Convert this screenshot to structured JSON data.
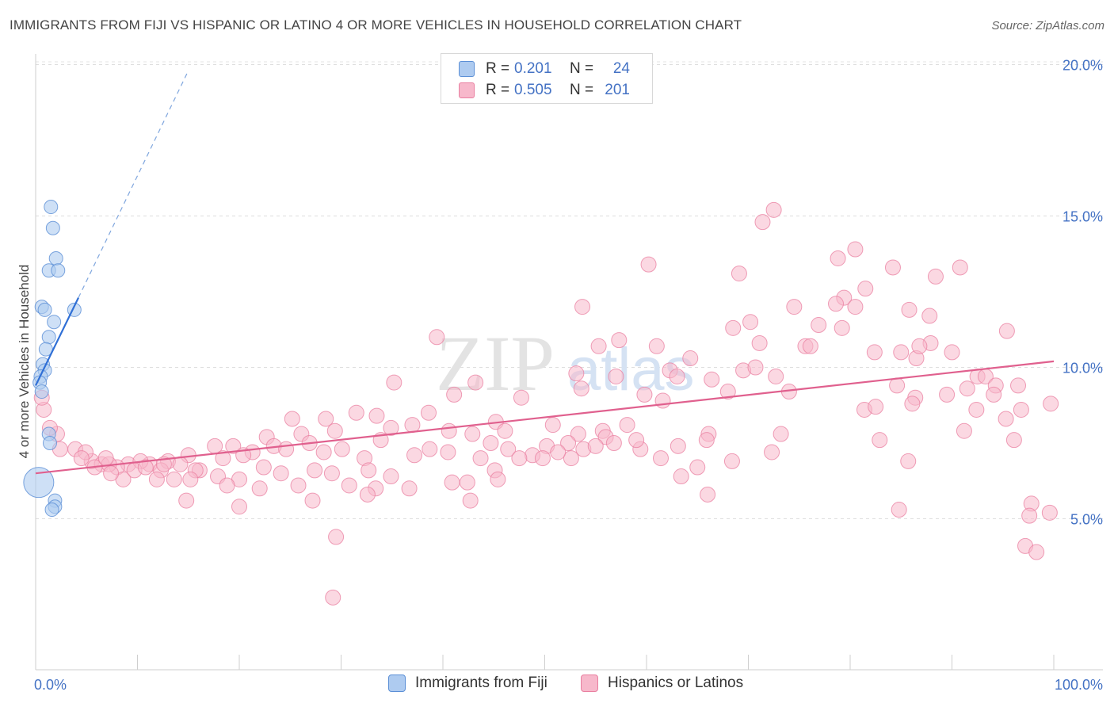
{
  "header": {
    "title": "IMMIGRANTS FROM FIJI VS HISPANIC OR LATINO 4 OR MORE VEHICLES IN HOUSEHOLD CORRELATION CHART",
    "source": "Source: ZipAtlas.com"
  },
  "legend": {
    "r_label": "R =",
    "n_label": "N =",
    "series": [
      {
        "name": "Immigrants from Fiji",
        "r": "0.201",
        "n": "24",
        "fill": "#aecbf0",
        "stroke": "#5b8fd6"
      },
      {
        "name": "Hispanics or Latinos",
        "r": "0.505",
        "n": "201",
        "fill": "#f7b8cb",
        "stroke": "#e97fa0"
      }
    ]
  },
  "watermark": {
    "zip": "ZIP",
    "atlas": "atlas"
  },
  "colors": {
    "blue_line": "#2f6fd6",
    "pink_line": "#e0608e",
    "tick_text": "#4472c4",
    "grid": "#dddddd"
  },
  "chart_data": {
    "type": "scatter",
    "title": "IMMIGRANTS FROM FIJI VS HISPANIC OR LATINO 4 OR MORE VEHICLES IN HOUSEHOLD CORRELATION CHART",
    "xlabel": "",
    "ylabel": "4 or more Vehicles in Household",
    "xlim": [
      0,
      100
    ],
    "ylim": [
      0,
      21
    ],
    "x_tick_labels": [
      "0.0%",
      "100.0%"
    ],
    "y_ticks": [
      5,
      10,
      15,
      20
    ],
    "y_tick_labels": [
      "5.0%",
      "10.0%",
      "15.0%",
      "20.0%"
    ],
    "grid": true,
    "series": [
      {
        "name": "Immigrants from Fiji",
        "trend": {
          "x0": 0,
          "y0": 9.4,
          "x1": 4.2,
          "y1": 12.3,
          "dashed_to_x": 15,
          "dashed_to_y": 19.8
        },
        "points": [
          [
            1.5,
            15.3
          ],
          [
            1.7,
            14.6
          ],
          [
            2.0,
            13.6
          ],
          [
            1.3,
            13.2
          ],
          [
            2.2,
            13.2
          ],
          [
            0.6,
            12.0
          ],
          [
            0.9,
            11.9
          ],
          [
            3.8,
            11.9
          ],
          [
            1.8,
            11.5
          ],
          [
            1.3,
            11.0
          ],
          [
            1.0,
            10.6
          ],
          [
            0.7,
            10.1
          ],
          [
            0.9,
            9.9
          ],
          [
            0.5,
            9.7
          ],
          [
            0.4,
            9.5
          ],
          [
            0.6,
            9.2
          ],
          [
            1.3,
            7.8
          ],
          [
            1.4,
            7.5
          ],
          [
            1.9,
            5.6
          ],
          [
            1.9,
            5.4
          ],
          [
            1.6,
            5.3
          ],
          [
            0.3,
            6.2
          ]
        ]
      },
      {
        "name": "Hispanics or Latinos",
        "trend": {
          "x0": 0,
          "y0": 6.5,
          "x1": 100,
          "y1": 10.2
        },
        "points": [
          [
            72.5,
            15.2
          ],
          [
            71.4,
            14.8
          ],
          [
            80.5,
            13.9
          ],
          [
            78.8,
            13.6
          ],
          [
            60.2,
            13.4
          ],
          [
            84.2,
            13.3
          ],
          [
            69.1,
            13.1
          ],
          [
            90.8,
            13.3
          ],
          [
            88.4,
            13.0
          ],
          [
            81.5,
            12.6
          ],
          [
            79.4,
            12.3
          ],
          [
            80.5,
            12.0
          ],
          [
            74.5,
            12.0
          ],
          [
            85.8,
            11.9
          ],
          [
            78.6,
            12.1
          ],
          [
            53.7,
            12.0
          ],
          [
            87.8,
            11.7
          ],
          [
            70.2,
            11.5
          ],
          [
            76.9,
            11.4
          ],
          [
            68.5,
            11.3
          ],
          [
            79.2,
            11.3
          ],
          [
            95.4,
            11.2
          ],
          [
            39.4,
            11.0
          ],
          [
            55.3,
            10.7
          ],
          [
            57.3,
            10.9
          ],
          [
            61.0,
            10.7
          ],
          [
            71.1,
            10.8
          ],
          [
            75.6,
            10.7
          ],
          [
            76.1,
            10.7
          ],
          [
            82.4,
            10.5
          ],
          [
            85.0,
            10.5
          ],
          [
            86.5,
            10.3
          ],
          [
            87.9,
            10.8
          ],
          [
            86.8,
            10.7
          ],
          [
            90.0,
            10.5
          ],
          [
            64.3,
            10.3
          ],
          [
            62.3,
            9.9
          ],
          [
            69.5,
            9.9
          ],
          [
            72.7,
            9.7
          ],
          [
            63.0,
            9.7
          ],
          [
            66.4,
            9.6
          ],
          [
            57.0,
            9.7
          ],
          [
            53.1,
            9.8
          ],
          [
            70.7,
            10.0
          ],
          [
            92.5,
            9.7
          ],
          [
            93.3,
            9.7
          ],
          [
            84.6,
            9.4
          ],
          [
            86.4,
            9.0
          ],
          [
            89.5,
            9.1
          ],
          [
            91.5,
            9.3
          ],
          [
            94.3,
            9.4
          ],
          [
            94.1,
            9.1
          ],
          [
            96.5,
            9.4
          ],
          [
            41.1,
            9.1
          ],
          [
            43.2,
            9.5
          ],
          [
            47.7,
            9.0
          ],
          [
            53.6,
            9.3
          ],
          [
            59.8,
            9.1
          ],
          [
            61.6,
            8.9
          ],
          [
            68.0,
            9.2
          ],
          [
            74.0,
            9.2
          ],
          [
            81.4,
            8.6
          ],
          [
            82.5,
            8.7
          ],
          [
            86.1,
            8.8
          ],
          [
            96.8,
            8.6
          ],
          [
            95.3,
            8.3
          ],
          [
            92.4,
            8.6
          ],
          [
            99.7,
            8.8
          ],
          [
            35.2,
            9.5
          ],
          [
            38.6,
            8.5
          ],
          [
            31.5,
            8.5
          ],
          [
            33.5,
            8.4
          ],
          [
            34.9,
            8.0
          ],
          [
            28.5,
            8.3
          ],
          [
            25.2,
            8.3
          ],
          [
            22.7,
            7.7
          ],
          [
            26.1,
            7.8
          ],
          [
            29.4,
            7.9
          ],
          [
            37.0,
            8.1
          ],
          [
            40.6,
            7.9
          ],
          [
            45.2,
            8.2
          ],
          [
            46.1,
            7.9
          ],
          [
            50.8,
            8.1
          ],
          [
            53.3,
            7.8
          ],
          [
            55.7,
            7.9
          ],
          [
            58.1,
            8.1
          ],
          [
            56.0,
            7.7
          ],
          [
            66.1,
            7.8
          ],
          [
            73.2,
            7.8
          ],
          [
            82.9,
            7.6
          ],
          [
            91.2,
            7.9
          ],
          [
            96.1,
            7.6
          ],
          [
            42.9,
            7.8
          ],
          [
            40.5,
            7.2
          ],
          [
            44.7,
            7.5
          ],
          [
            46.4,
            7.3
          ],
          [
            50.2,
            7.4
          ],
          [
            52.3,
            7.5
          ],
          [
            53.8,
            7.3
          ],
          [
            48.8,
            7.1
          ],
          [
            52.6,
            7.0
          ],
          [
            56.8,
            7.5
          ],
          [
            59.4,
            7.3
          ],
          [
            61.4,
            7.0
          ],
          [
            65.9,
            7.6
          ],
          [
            72.3,
            7.2
          ],
          [
            85.7,
            6.9
          ],
          [
            26.9,
            7.5
          ],
          [
            30.1,
            7.3
          ],
          [
            33.9,
            7.6
          ],
          [
            37.2,
            7.1
          ],
          [
            38.7,
            7.3
          ],
          [
            43.7,
            7.0
          ],
          [
            47.5,
            7.0
          ],
          [
            21.3,
            7.2
          ],
          [
            23.4,
            7.4
          ],
          [
            24.6,
            7.3
          ],
          [
            28.3,
            7.2
          ],
          [
            32.3,
            7.0
          ],
          [
            17.6,
            7.4
          ],
          [
            15.0,
            7.1
          ],
          [
            18.4,
            7.0
          ],
          [
            19.4,
            7.4
          ],
          [
            20.4,
            7.1
          ],
          [
            13.0,
            6.9
          ],
          [
            11.2,
            6.8
          ],
          [
            9.1,
            6.8
          ],
          [
            10.3,
            6.9
          ],
          [
            12.3,
            6.6
          ],
          [
            14.2,
            6.8
          ],
          [
            16.1,
            6.6
          ],
          [
            17.9,
            6.4
          ],
          [
            20.0,
            6.3
          ],
          [
            22.4,
            6.7
          ],
          [
            24.1,
            6.5
          ],
          [
            27.4,
            6.6
          ],
          [
            29.1,
            6.5
          ],
          [
            32.7,
            6.6
          ],
          [
            34.9,
            6.4
          ],
          [
            40.9,
            6.2
          ],
          [
            45.1,
            6.6
          ],
          [
            49.8,
            7.0
          ],
          [
            51.3,
            7.2
          ],
          [
            55.0,
            7.4
          ],
          [
            59.0,
            7.6
          ],
          [
            63.1,
            7.4
          ],
          [
            65.0,
            6.7
          ],
          [
            68.4,
            6.9
          ],
          [
            5.5,
            6.9
          ],
          [
            6.5,
            6.8
          ],
          [
            8.0,
            6.7
          ],
          [
            9.7,
            6.6
          ],
          [
            11.9,
            6.3
          ],
          [
            13.6,
            6.3
          ],
          [
            15.7,
            6.6
          ],
          [
            3.9,
            7.3
          ],
          [
            4.9,
            7.2
          ],
          [
            2.4,
            7.3
          ],
          [
            7.2,
            6.8
          ],
          [
            5.8,
            6.7
          ],
          [
            8.6,
            6.3
          ],
          [
            6.9,
            7.0
          ],
          [
            4.5,
            7.0
          ],
          [
            12.6,
            6.8
          ],
          [
            2.1,
            7.8
          ],
          [
            1.4,
            8.0
          ],
          [
            0.8,
            8.6
          ],
          [
            0.6,
            9.0
          ],
          [
            7.4,
            6.5
          ],
          [
            10.8,
            6.7
          ],
          [
            15.2,
            6.3
          ],
          [
            18.8,
            6.1
          ],
          [
            22.0,
            6.0
          ],
          [
            25.8,
            6.1
          ],
          [
            30.8,
            6.1
          ],
          [
            33.4,
            6.0
          ],
          [
            36.7,
            6.0
          ],
          [
            42.4,
            6.2
          ],
          [
            45.4,
            6.3
          ],
          [
            63.4,
            6.4
          ],
          [
            14.8,
            5.6
          ],
          [
            20.0,
            5.4
          ],
          [
            27.2,
            5.6
          ],
          [
            32.6,
            5.8
          ],
          [
            42.7,
            5.6
          ],
          [
            66.0,
            5.8
          ],
          [
            84.8,
            5.3
          ],
          [
            97.8,
            5.5
          ],
          [
            97.6,
            5.1
          ],
          [
            99.6,
            5.2
          ],
          [
            29.5,
            4.4
          ],
          [
            97.2,
            4.1
          ],
          [
            98.3,
            3.9
          ],
          [
            29.2,
            2.4
          ]
        ]
      }
    ]
  }
}
